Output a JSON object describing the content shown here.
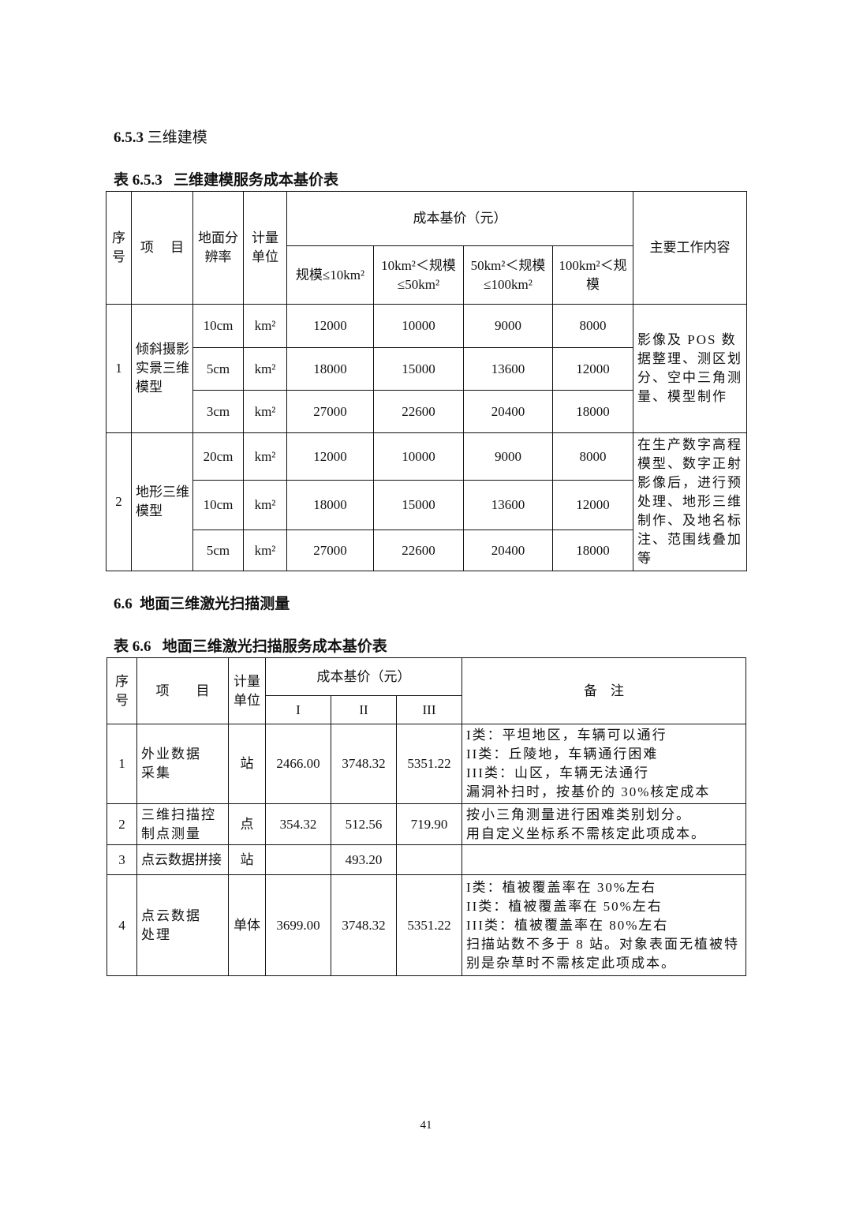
{
  "section_653": {
    "number": "6.5.3",
    "title": "三维建模"
  },
  "table_653": {
    "caption_no": "表 6.5.3",
    "caption": "三维建模服务成本基价表",
    "headers": {
      "seq": "序\n号",
      "item": "项　 目",
      "resolution": "地面分\n辨率",
      "unit": "计量\n单位",
      "cost": "成本基价（元）",
      "scale": [
        "规模≤10km²",
        "10km²＜规模\n≤50km²",
        "50km²＜规模\n≤100km²",
        "100km²＜规\n模"
      ],
      "work": "主要工作内容"
    },
    "groups": [
      {
        "seq": "1",
        "item": "倾斜摄影\n实景三维\n模型",
        "work": "影像及 POS 数据整理、测区划分、空中三角测量、模型制作",
        "rows": [
          {
            "resolution": "10cm",
            "unit": "km²",
            "values": [
              "12000",
              "10000",
              "9000",
              "8000"
            ]
          },
          {
            "resolution": "5cm",
            "unit": "km²",
            "values": [
              "18000",
              "15000",
              "13600",
              "12000"
            ]
          },
          {
            "resolution": "3cm",
            "unit": "km²",
            "values": [
              "27000",
              "22600",
              "20400",
              "18000"
            ]
          }
        ]
      },
      {
        "seq": "2",
        "item": "地形三维\n模型",
        "work": "在生产数字高程模型、数字正射影像后，进行预处理、地形三维制作、及地名标注、范围线叠加等",
        "rows": [
          {
            "resolution": "20cm",
            "unit": "km²",
            "values": [
              "12000",
              "10000",
              "9000",
              "8000"
            ]
          },
          {
            "resolution": "10cm",
            "unit": "km²",
            "values": [
              "18000",
              "15000",
              "13600",
              "12000"
            ]
          },
          {
            "resolution": "5cm",
            "unit": "km²",
            "values": [
              "27000",
              "22600",
              "20400",
              "18000"
            ]
          }
        ]
      }
    ]
  },
  "section_66": {
    "number": "6.6",
    "title": "地面三维激光扫描测量"
  },
  "table_66": {
    "caption_no": "表 6.6",
    "caption": "地面三维激光扫描服务成本基价表",
    "headers": {
      "seq": "序\n号",
      "item": "项　　目",
      "unit": "计量\n单位",
      "cost": "成本基价（元）",
      "classes": [
        "I",
        "II",
        "III"
      ],
      "remark": "备　注"
    },
    "rows": [
      {
        "seq": "1",
        "item": "外业数据\n采集",
        "unit": "站",
        "values": [
          "2466.00",
          "3748.32",
          "5351.22"
        ],
        "remark": "I类：平坦地区，车辆可以通行\nII类：丘陵地，车辆通行困难\nIII类：山区，车辆无法通行\n漏洞补扫时，按基价的 30%核定成本"
      },
      {
        "seq": "2",
        "item": "三维扫描控\n制点测量",
        "unit": "点",
        "values": [
          "354.32",
          "512.56",
          "719.90"
        ],
        "remark": "按小三角测量进行困难类别划分。\n用自定义坐标系不需核定此项成本。"
      },
      {
        "seq": "3",
        "item": "点云数据拼接",
        "unit": "站",
        "merged_value": "493.20",
        "remark": ""
      },
      {
        "seq": "4",
        "item": "点云数据\n处理",
        "unit": "单体",
        "values": [
          "3699.00",
          "3748.32",
          "5351.22"
        ],
        "remark": "I类：植被覆盖率在 30%左右\nII类：植被覆盖率在 50%左右\nIII类：植被覆盖率在 80%左右\n扫描站数不多于 8 站。对象表面无植被特别是杂草时不需核定此项成本。"
      }
    ]
  },
  "page_number": "41"
}
